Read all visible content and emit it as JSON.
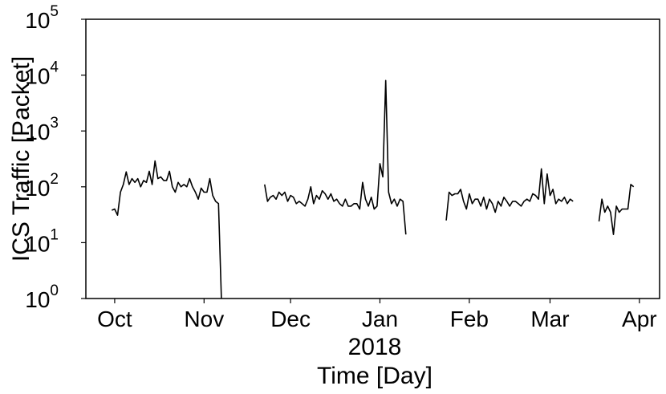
{
  "chart_data": {
    "type": "line",
    "title": "",
    "xlabel": "Time [Day]",
    "ylabel": "ICS Traffic [Packet]",
    "yscale": "log",
    "ylim": [
      1,
      100000
    ],
    "y_ticks": [
      {
        "base": "10",
        "exp": "0",
        "value": 1
      },
      {
        "base": "10",
        "exp": "1",
        "value": 10
      },
      {
        "base": "10",
        "exp": "2",
        "value": 100
      },
      {
        "base": "10",
        "exp": "3",
        "value": 1000
      },
      {
        "base": "10",
        "exp": "4",
        "value": 10000
      },
      {
        "base": "10",
        "exp": "5",
        "value": 100000
      }
    ],
    "xlim": [
      "2017-09-21",
      "2018-04-08"
    ],
    "x_ticks": [
      {
        "label": "Oct",
        "date": "2017-10-01"
      },
      {
        "label": "Nov",
        "date": "2017-11-01"
      },
      {
        "label": "Dec",
        "date": "2017-12-01"
      },
      {
        "label": "Jan",
        "date": "2018-01-01"
      },
      {
        "label": "Feb",
        "date": "2018-02-01"
      },
      {
        "label": "Mar",
        "date": "2018-03-01"
      },
      {
        "label": "Apr",
        "date": "2018-04-01"
      }
    ],
    "x_year_label": "2018",
    "grid": false,
    "line_color": "#000000",
    "series": [
      {
        "segments": [
          [
            [
              "2017-09-30",
              38
            ],
            [
              "2017-10-01",
              40
            ],
            [
              "2017-10-02",
              31
            ],
            [
              "2017-10-03",
              80
            ],
            [
              "2017-10-04",
              110
            ],
            [
              "2017-10-05",
              185
            ],
            [
              "2017-10-06",
              110
            ],
            [
              "2017-10-07",
              140
            ],
            [
              "2017-10-08",
              120
            ],
            [
              "2017-10-09",
              140
            ],
            [
              "2017-10-10",
              100
            ],
            [
              "2017-10-11",
              130
            ],
            [
              "2017-10-12",
              120
            ],
            [
              "2017-10-13",
              190
            ],
            [
              "2017-10-14",
              110
            ],
            [
              "2017-10-15",
              290
            ],
            [
              "2017-10-16",
              140
            ],
            [
              "2017-10-17",
              150
            ],
            [
              "2017-10-18",
              130
            ],
            [
              "2017-10-19",
              130
            ],
            [
              "2017-10-20",
              190
            ],
            [
              "2017-10-21",
              100
            ],
            [
              "2017-10-22",
              80
            ],
            [
              "2017-10-23",
              120
            ],
            [
              "2017-10-24",
              100
            ],
            [
              "2017-10-25",
              110
            ],
            [
              "2017-10-26",
              100
            ],
            [
              "2017-10-27",
              140
            ],
            [
              "2017-10-28",
              100
            ],
            [
              "2017-10-29",
              80
            ],
            [
              "2017-10-30",
              60
            ],
            [
              "2017-10-31",
              95
            ],
            [
              "2017-11-01",
              80
            ],
            [
              "2017-11-02",
              80
            ],
            [
              "2017-11-03",
              140
            ],
            [
              "2017-11-04",
              70
            ],
            [
              "2017-11-05",
              55
            ],
            [
              "2017-11-06",
              50
            ],
            [
              "2017-11-07",
              1
            ]
          ],
          [
            [
              "2017-11-22",
              110
            ],
            [
              "2017-11-23",
              55
            ],
            [
              "2017-11-24",
              65
            ],
            [
              "2017-11-25",
              70
            ],
            [
              "2017-11-26",
              60
            ],
            [
              "2017-11-27",
              80
            ],
            [
              "2017-11-28",
              70
            ],
            [
              "2017-11-29",
              80
            ],
            [
              "2017-11-30",
              55
            ],
            [
              "2017-12-01",
              70
            ],
            [
              "2017-12-02",
              65
            ],
            [
              "2017-12-03",
              50
            ],
            [
              "2017-12-04",
              55
            ],
            [
              "2017-12-05",
              50
            ],
            [
              "2017-12-06",
              45
            ],
            [
              "2017-12-07",
              60
            ],
            [
              "2017-12-08",
              100
            ],
            [
              "2017-12-09",
              50
            ],
            [
              "2017-12-10",
              70
            ],
            [
              "2017-12-11",
              60
            ],
            [
              "2017-12-12",
              85
            ],
            [
              "2017-12-13",
              75
            ],
            [
              "2017-12-14",
              60
            ],
            [
              "2017-12-15",
              75
            ],
            [
              "2017-12-16",
              55
            ],
            [
              "2017-12-17",
              60
            ],
            [
              "2017-12-18",
              50
            ],
            [
              "2017-12-19",
              45
            ],
            [
              "2017-12-20",
              60
            ],
            [
              "2017-12-21",
              45
            ],
            [
              "2017-12-22",
              45
            ],
            [
              "2017-12-23",
              50
            ],
            [
              "2017-12-24",
              50
            ],
            [
              "2017-12-25",
              40
            ],
            [
              "2017-12-26",
              120
            ],
            [
              "2017-12-27",
              60
            ],
            [
              "2017-12-28",
              45
            ],
            [
              "2017-12-29",
              65
            ],
            [
              "2017-12-30",
              40
            ],
            [
              "2017-12-31",
              45
            ],
            [
              "2018-01-01",
              260
            ],
            [
              "2018-01-02",
              150
            ],
            [
              "2018-01-03",
              8000
            ],
            [
              "2018-01-04",
              80
            ],
            [
              "2018-01-05",
              50
            ],
            [
              "2018-01-06",
              60
            ],
            [
              "2018-01-07",
              45
            ],
            [
              "2018-01-08",
              60
            ],
            [
              "2018-01-09",
              55
            ],
            [
              "2018-01-10",
              14
            ]
          ],
          [
            [
              "2018-01-24",
              25
            ],
            [
              "2018-01-25",
              80
            ],
            [
              "2018-01-26",
              70
            ],
            [
              "2018-01-27",
              75
            ],
            [
              "2018-01-28",
              75
            ],
            [
              "2018-01-29",
              90
            ],
            [
              "2018-01-30",
              55
            ],
            [
              "2018-01-31",
              40
            ],
            [
              "2018-02-01",
              75
            ],
            [
              "2018-02-02",
              50
            ],
            [
              "2018-02-03",
              60
            ],
            [
              "2018-02-04",
              60
            ],
            [
              "2018-02-05",
              45
            ],
            [
              "2018-02-06",
              65
            ],
            [
              "2018-02-07",
              40
            ],
            [
              "2018-02-08",
              60
            ],
            [
              "2018-02-09",
              50
            ],
            [
              "2018-02-10",
              35
            ],
            [
              "2018-02-11",
              55
            ],
            [
              "2018-02-12",
              45
            ],
            [
              "2018-02-13",
              65
            ],
            [
              "2018-02-14",
              55
            ],
            [
              "2018-02-15",
              45
            ],
            [
              "2018-02-16",
              55
            ],
            [
              "2018-02-17",
              55
            ],
            [
              "2018-02-18",
              50
            ],
            [
              "2018-02-19",
              45
            ],
            [
              "2018-02-20",
              55
            ],
            [
              "2018-02-21",
              60
            ],
            [
              "2018-02-22",
              55
            ],
            [
              "2018-02-23",
              75
            ],
            [
              "2018-02-24",
              70
            ],
            [
              "2018-02-25",
              60
            ],
            [
              "2018-02-26",
              210
            ],
            [
              "2018-02-27",
              50
            ],
            [
              "2018-02-28",
              170
            ],
            [
              "2018-03-01",
              70
            ],
            [
              "2018-03-02",
              90
            ],
            [
              "2018-03-03",
              50
            ],
            [
              "2018-03-04",
              60
            ],
            [
              "2018-03-05",
              55
            ],
            [
              "2018-03-06",
              65
            ],
            [
              "2018-03-07",
              50
            ],
            [
              "2018-03-08",
              60
            ],
            [
              "2018-03-09",
              55
            ]
          ],
          [
            [
              "2018-03-18",
              24
            ],
            [
              "2018-03-19",
              60
            ],
            [
              "2018-03-20",
              35
            ],
            [
              "2018-03-21",
              45
            ],
            [
              "2018-03-22",
              35
            ],
            [
              "2018-03-23",
              14
            ],
            [
              "2018-03-24",
              45
            ],
            [
              "2018-03-25",
              35
            ],
            [
              "2018-03-26",
              40
            ],
            [
              "2018-03-27",
              40
            ],
            [
              "2018-03-28",
              40
            ],
            [
              "2018-03-29",
              110
            ],
            [
              "2018-03-30",
              100
            ]
          ]
        ]
      }
    ]
  }
}
